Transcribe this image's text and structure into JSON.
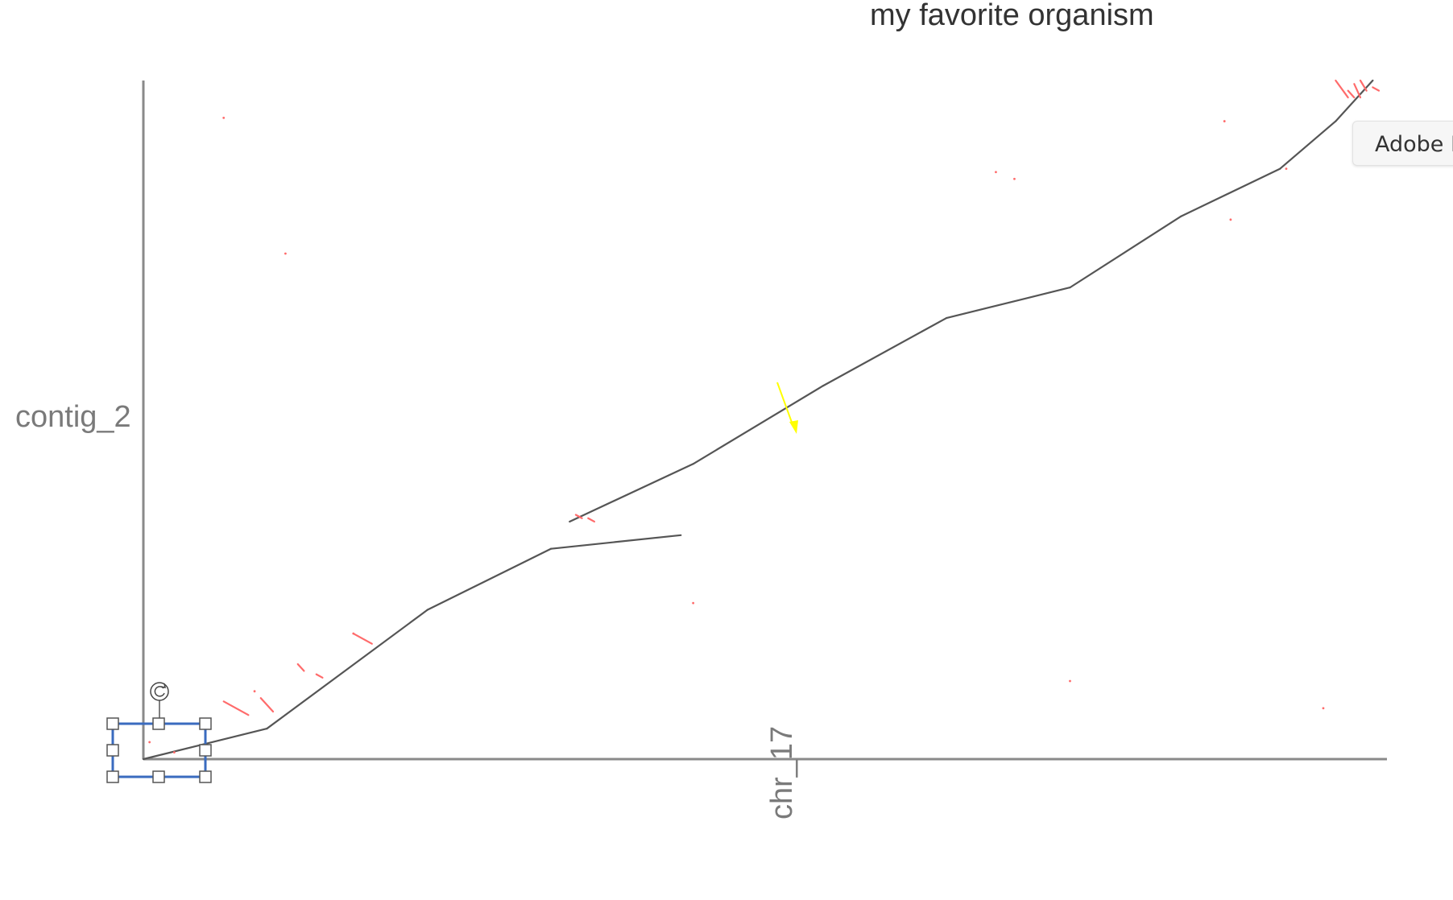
{
  "window": {
    "tooltip_text": "Adobe F"
  },
  "chart_data": {
    "type": "scatter",
    "subtype": "dotplot",
    "title": "my favorite organism",
    "xlabel": "chr_17",
    "ylabel": "contig_2",
    "xlim": [
      0,
      100
    ],
    "ylim": [
      0,
      100
    ],
    "grid": false,
    "colors": {
      "forward": "#555555",
      "reverse": "#ff6b6b",
      "axis": "#8a8a8a",
      "annotation_arrow": "#ffff00",
      "selection": "#3a6bbf"
    },
    "series": [
      {
        "segments": [
          [
            0,
            0,
            10,
            4.5
          ],
          [
            10,
            4.5,
            23,
            22
          ],
          [
            23,
            22,
            33,
            31
          ],
          [
            33,
            31,
            43.5,
            33
          ],
          [
            34.5,
            35,
            44.5,
            43.5
          ],
          [
            44.5,
            43.5,
            55,
            55
          ],
          [
            55,
            55,
            65,
            65
          ],
          [
            65,
            65,
            75,
            69.5
          ],
          [
            75,
            69.5,
            84,
            80
          ],
          [
            84,
            80,
            92,
            87
          ],
          [
            92,
            87,
            96.5,
            94
          ],
          [
            96.5,
            94,
            99.5,
            100
          ]
        ]
      },
      {
        "segments": [
          [
            17,
            18.5,
            18.5,
            17
          ],
          [
            6.5,
            8.5,
            8.5,
            6.5
          ],
          [
            9.5,
            9,
            10.5,
            7
          ],
          [
            12.5,
            14,
            13,
            13
          ],
          [
            14,
            12.5,
            14.5,
            12
          ],
          [
            35,
            36,
            35.5,
            35.5
          ],
          [
            36,
            35.5,
            36.5,
            35
          ],
          [
            96.5,
            100,
            97.5,
            97.5
          ],
          [
            97.5,
            98.5,
            98,
            97.5
          ],
          [
            98,
            99.5,
            98.5,
            97.5
          ],
          [
            98.5,
            100,
            99,
            98.5
          ],
          [
            99.5,
            99,
            100,
            98.5
          ]
        ],
        "points": [
          [
            6.5,
            94.5
          ],
          [
            11.5,
            74.5
          ],
          [
            44.5,
            23
          ],
          [
            69,
            86.5
          ],
          [
            70.5,
            85.5
          ],
          [
            87.5,
            94
          ],
          [
            88,
            79.5
          ],
          [
            92.5,
            87
          ],
          [
            75,
            11.5
          ],
          [
            95.5,
            7.5
          ],
          [
            0.5,
            2.5
          ],
          [
            2.5,
            1
          ],
          [
            9,
            10
          ],
          [
            17,
            18.5
          ]
        ]
      }
    ]
  }
}
